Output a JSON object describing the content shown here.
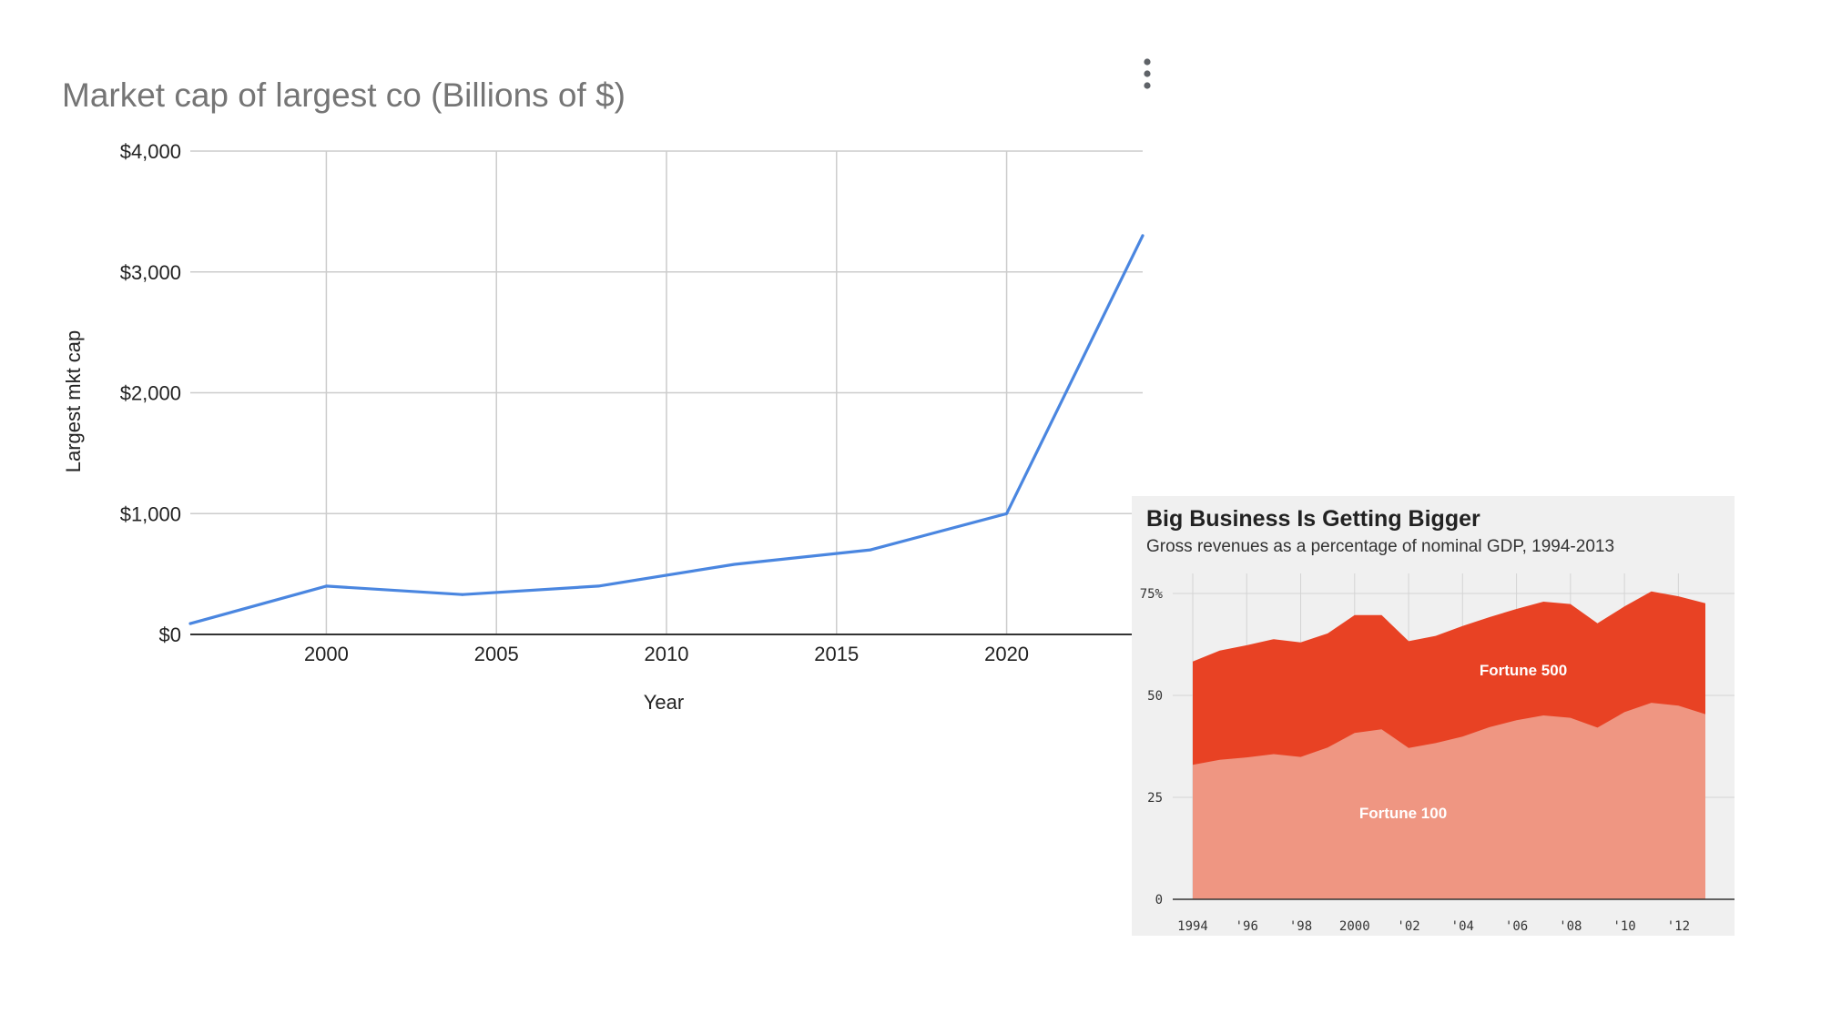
{
  "chart_data": [
    {
      "type": "line",
      "title": "Market cap of largest co (Billions of $)",
      "xlabel": "Year",
      "ylabel": "Largest mkt cap",
      "xlim": [
        1996,
        2024
      ],
      "ylim": [
        0,
        4000
      ],
      "x_ticks": [
        2000,
        2005,
        2010,
        2015,
        2020
      ],
      "x_tick_labels": [
        "2000",
        "2005",
        "2010",
        "2015",
        "2020"
      ],
      "y_ticks": [
        0,
        1000,
        2000,
        3000,
        4000
      ],
      "y_tick_labels": [
        "$0",
        "$1,000",
        "$2,000",
        "$3,000",
        "$4,000"
      ],
      "grid": true,
      "color": "#4a86e0",
      "series": [
        {
          "x": [
            1996,
            2000,
            2004,
            2008,
            2012,
            2016,
            2020,
            2024
          ],
          "values": [
            90,
            400,
            330,
            400,
            580,
            700,
            1000,
            3300
          ]
        }
      ]
    },
    {
      "type": "area",
      "title": "Big Business Is Getting Bigger",
      "subtitle": "Gross revenues as a percentage of nominal GDP, 1994-2013",
      "xlim": [
        1994,
        2013
      ],
      "ylim": [
        0,
        75
      ],
      "y_ticks": [
        0,
        25,
        50,
        75
      ],
      "y_tick_labels": [
        "0",
        "25",
        "50",
        "75%"
      ],
      "x_ticks": [
        1994,
        1996,
        1998,
        2000,
        2002,
        2004,
        2006,
        2008,
        2010,
        2012
      ],
      "x_tick_labels": [
        "1994",
        "'96",
        "'98",
        "2000",
        "'02",
        "'04",
        "'06",
        "'08",
        "'10",
        "'12"
      ],
      "grid": true,
      "x": [
        1994,
        1995,
        1996,
        1997,
        1998,
        1999,
        2000,
        2001,
        2002,
        2003,
        2004,
        2005,
        2006,
        2007,
        2008,
        2009,
        2010,
        2011,
        2012,
        2013
      ],
      "series": [
        {
          "name": "Fortune 500",
          "color": "#e84224",
          "values": [
            58.3,
            61,
            62.3,
            63.8,
            63,
            65.2,
            69.7,
            69.7,
            63.3,
            64.6,
            67,
            69.2,
            71.2,
            73,
            72.4,
            67.7,
            71.8,
            75.5,
            74.3,
            72.6
          ]
        },
        {
          "name": "Fortune 100",
          "color": "#ef9682",
          "values": [
            33,
            34.2,
            34.8,
            35.6,
            34.9,
            37.2,
            40.8,
            41.7,
            37.1,
            38.3,
            39.9,
            42.2,
            43.9,
            45.1,
            44.5,
            42.1,
            45.9,
            48.2,
            47.5,
            45.4
          ]
        }
      ]
    }
  ]
}
